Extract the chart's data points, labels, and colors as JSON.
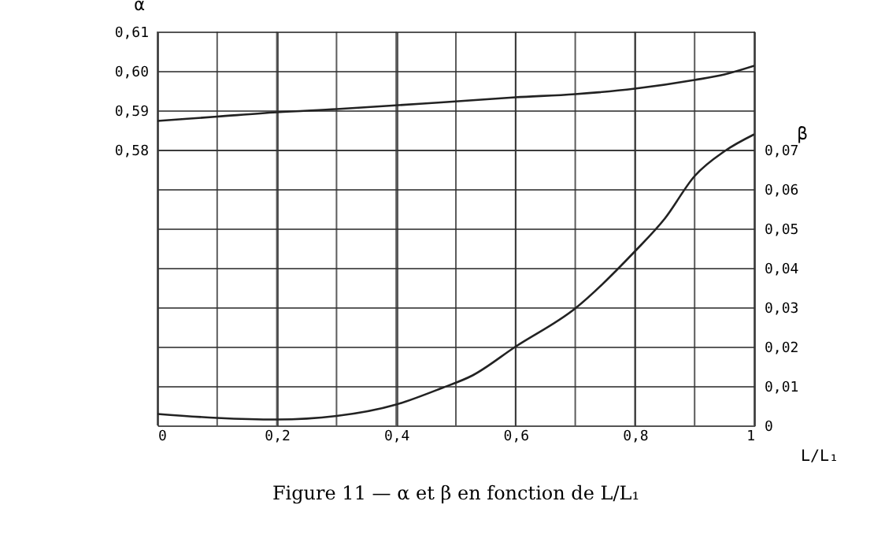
{
  "chart_data": {
    "type": "line",
    "xlabel": "L/L₁",
    "ylabel": "α",
    "y2label": "β",
    "annotations": [
      "Figure 11 — α et β en fonction de L/L₁"
    ],
    "xlim": [
      0,
      1
    ],
    "xticks": [
      0,
      {
        "value": 0.1,
        "label": null
      },
      {
        "value": 0.2,
        "label": "0,2"
      },
      {
        "value": 0.3,
        "label": null
      },
      {
        "value": 0.4,
        "label": "0,4"
      },
      {
        "value": 0.5,
        "label": null
      },
      {
        "value": 0.6,
        "label": "0,6"
      },
      {
        "value": 0.7,
        "label": null
      },
      {
        "value": 0.8,
        "label": "0,8"
      },
      {
        "value": 0.9,
        "label": null
      },
      1
    ],
    "ylim": [
      0.51,
      0.61
    ],
    "yticks": [
      {
        "value": 0.58,
        "label": "0,58"
      },
      {
        "value": 0.59,
        "label": "0,59"
      },
      {
        "value": 0.6,
        "label": "0,60"
      },
      {
        "value": 0.61,
        "label": "0,61"
      }
    ],
    "y2lim": [
      0,
      0.1
    ],
    "y2ticks": [
      0,
      {
        "value": 0.01,
        "label": "0,01"
      },
      {
        "value": 0.02,
        "label": "0,02"
      },
      {
        "value": 0.03,
        "label": "0,03"
      },
      {
        "value": 0.04,
        "label": "0,04"
      },
      {
        "value": 0.05,
        "label": "0,05"
      },
      {
        "value": 0.06,
        "label": "0,06"
      },
      {
        "value": 0.07,
        "label": "0,07"
      }
    ],
    "grid": true,
    "marker": "none",
    "line_style": "solid",
    "series": [
      {
        "color": "#222222",
        "axis": "y",
        "x": [
          0,
          0.1,
          0.2,
          0.3,
          0.475,
          0.6,
          0.7,
          0.8,
          0.9,
          0.95,
          1
        ],
        "values": [
          0.5873,
          0.5884,
          0.5895,
          0.5903,
          0.592,
          0.5933,
          0.5941,
          0.5955,
          0.5977,
          0.5991,
          0.6013
        ]
      },
      {
        "color": "#222222",
        "axis": "y2",
        "x": [
          0,
          0.1,
          0.2,
          0.3,
          0.4,
          0.475,
          0.528,
          0.6,
          0.7,
          0.8,
          0.85,
          0.9,
          0.95,
          1
        ],
        "values": [
          0.0029,
          0.0019,
          0.0015,
          0.0024,
          0.0053,
          0.0094,
          0.0127,
          0.02,
          0.0297,
          0.0442,
          0.0525,
          0.0633,
          0.0696,
          0.0739
        ]
      }
    ]
  }
}
